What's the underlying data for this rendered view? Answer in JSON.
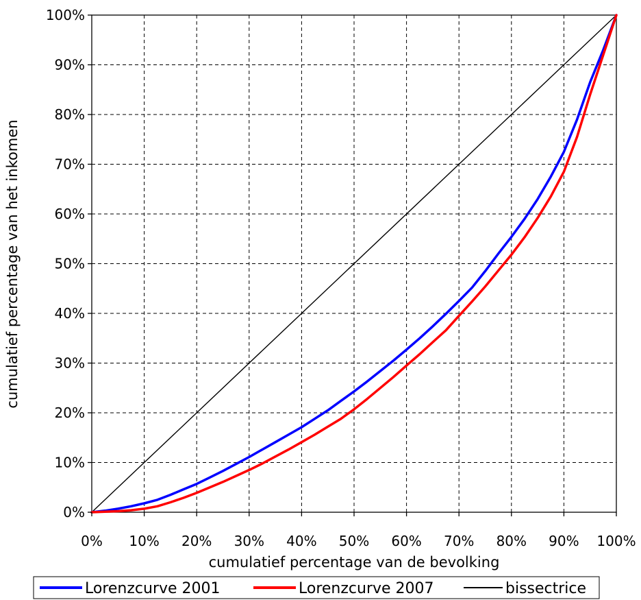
{
  "chart_data": {
    "type": "line",
    "title": "",
    "xlabel": "cumulatief percentage van de bevolking",
    "ylabel": "cumulatief percentage van het inkomen",
    "xlim": [
      0,
      100
    ],
    "ylim": [
      0,
      100
    ],
    "x_ticks": [
      0,
      10,
      20,
      30,
      40,
      50,
      60,
      70,
      80,
      90,
      100
    ],
    "y_ticks": [
      0,
      10,
      20,
      30,
      40,
      50,
      60,
      70,
      80,
      90,
      100
    ],
    "x_tick_labels": [
      "0%",
      "10%",
      "20%",
      "30%",
      "40%",
      "50%",
      "60%",
      "70%",
      "80%",
      "90%",
      "100%"
    ],
    "y_tick_labels": [
      "0%",
      "10%",
      "20%",
      "30%",
      "40%",
      "50%",
      "60%",
      "70%",
      "80%",
      "90%",
      "100%"
    ],
    "grid": true,
    "legend_position": "bottom",
    "series": [
      {
        "name": "Lorenzcurve 2001",
        "color": "#0000ff",
        "x": [
          0,
          2.5,
          5,
          7.5,
          10,
          12.5,
          15,
          17.5,
          20,
          22.5,
          25,
          27.5,
          30,
          32.5,
          35,
          37.5,
          40,
          42.5,
          45,
          47.5,
          50,
          52.5,
          55,
          57.5,
          60,
          62.5,
          65,
          67.5,
          70,
          72.5,
          75,
          77.5,
          80,
          82.5,
          85,
          87.5,
          90,
          92.5,
          95,
          97.5,
          100
        ],
        "y": [
          0,
          0.3,
          0.7,
          1.2,
          1.8,
          2.5,
          3.5,
          4.6,
          5.7,
          7.0,
          8.3,
          9.7,
          11.1,
          12.6,
          14.1,
          15.6,
          17.1,
          18.8,
          20.5,
          22.4,
          24.3,
          26.3,
          28.4,
          30.5,
          32.7,
          35.0,
          37.4,
          39.9,
          42.5,
          45.2,
          48.5,
          52.0,
          55.4,
          59.0,
          63.0,
          67.5,
          72.5,
          79.0,
          86.5,
          93.0,
          100
        ]
      },
      {
        "name": "Lorenzcurve 2007",
        "color": "#ff0000",
        "x": [
          0,
          2.5,
          5,
          7.5,
          10,
          12.5,
          15,
          17.5,
          20,
          22.5,
          25,
          27.5,
          30,
          32.5,
          35,
          37.5,
          40,
          42.5,
          45,
          47.5,
          50,
          52.5,
          55,
          57.5,
          60,
          62.5,
          65,
          67.5,
          70,
          72.5,
          75,
          77.5,
          80,
          82.5,
          85,
          87.5,
          90,
          92.5,
          95,
          97.5,
          100
        ],
        "y": [
          0,
          0.1,
          0.2,
          0.4,
          0.7,
          1.2,
          2.0,
          2.9,
          3.9,
          5.0,
          6.1,
          7.3,
          8.5,
          9.8,
          11.2,
          12.6,
          14.1,
          15.6,
          17.2,
          18.8,
          20.7,
          22.8,
          25.0,
          27.2,
          29.5,
          31.8,
          34.2,
          36.6,
          39.5,
          42.4,
          45.4,
          48.6,
          51.8,
          55.3,
          59.2,
          63.5,
          68.5,
          75.5,
          84.0,
          92.0,
          100
        ]
      },
      {
        "name": "bissectrice",
        "color": "#000000",
        "x": [
          0,
          100
        ],
        "y": [
          0,
          100
        ]
      }
    ]
  }
}
